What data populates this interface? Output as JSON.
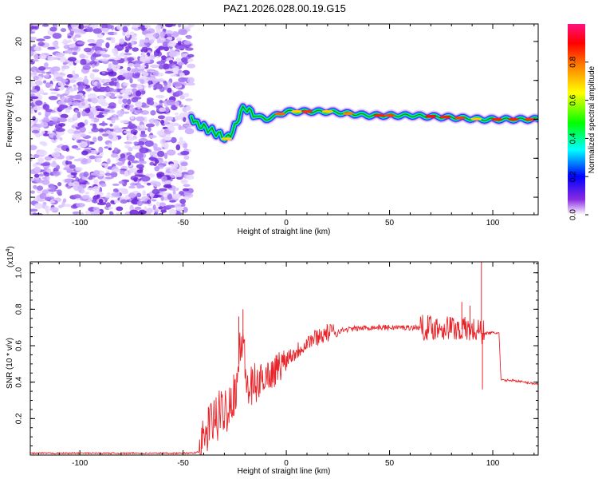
{
  "chart_data": [
    {
      "type": "heatmap",
      "title": "PAZ1.2026.028.00.19.G15",
      "xlabel": "Height of straight line (km)",
      "ylabel": "Frequency (Hz)",
      "xlim": [
        -124,
        122
      ],
      "ylim": [
        -24.5,
        24.5
      ],
      "xticks": [
        -100,
        -50,
        0,
        50,
        100
      ],
      "xtick_labels": [
        "-100",
        "-50",
        "0",
        "50",
        "100"
      ],
      "yticks": [
        -20,
        -10,
        0,
        10,
        20
      ],
      "ytick_labels": [
        "-20",
        "-10",
        "0",
        "10",
        "20"
      ],
      "colorbar": {
        "label": "Normalized spectral amplitude",
        "range": [
          0,
          1
        ],
        "ticks": [
          0.0,
          0.2,
          0.4,
          0.6,
          0.8
        ],
        "tick_labels": [
          "0.0",
          "0.2",
          "0.4",
          "0.6",
          "0.8"
        ],
        "colormap": [
          "#ffffff",
          "#8a2be2",
          "#0000ff",
          "#00ffff",
          "#00ff00",
          "#ffff00",
          "#ff8000",
          "#ff0000",
          "#ff00aa"
        ]
      },
      "signal_ridge": {
        "description_points_km_hz": [
          [
            -46,
            1
          ],
          [
            -44,
            -1
          ],
          [
            -40,
            -2
          ],
          [
            -36,
            -3
          ],
          [
            -32,
            -4
          ],
          [
            -29,
            -5
          ],
          [
            -26,
            -3
          ],
          [
            -24,
            -1
          ],
          [
            -22,
            2
          ],
          [
            -20,
            3
          ],
          [
            -15,
            1
          ],
          [
            -10,
            0
          ],
          [
            -5,
            1
          ],
          [
            0,
            2
          ],
          [
            10,
            2
          ],
          [
            20,
            2
          ],
          [
            40,
            1
          ],
          [
            60,
            1
          ],
          [
            80,
            0.5
          ],
          [
            95,
            0
          ],
          [
            122,
            0
          ]
        ]
      }
    },
    {
      "type": "line",
      "xlabel": "Height of straight line (km)",
      "ylabel": "SNR (10 * v/v)",
      "y_multiplier_label": "(x10",
      "y_multiplier_exp": "4",
      "y_multiplier_close": ")",
      "xlim": [
        -124,
        122
      ],
      "ylim": [
        0,
        1.06
      ],
      "xticks": [
        -100,
        -50,
        0,
        50,
        100
      ],
      "xtick_labels": [
        "-100",
        "-50",
        "0",
        "50",
        "100"
      ],
      "yticks": [
        0.2,
        0.4,
        0.6,
        0.8,
        1.0
      ],
      "ytick_labels": [
        "0.2",
        "0.4",
        "0.6",
        "0.8",
        "1.0"
      ],
      "series_color": "#e8252a",
      "series": [
        {
          "name": "SNR",
          "x": [
            -124,
            -100,
            -75,
            -50,
            -45,
            -42,
            -40,
            -38,
            -36,
            -34,
            -32,
            -30,
            -28,
            -26,
            -24,
            -22,
            -21,
            -20,
            -18,
            -16,
            -14,
            -12,
            -10,
            -8,
            -6,
            -4,
            -2,
            0,
            2,
            4,
            6,
            8,
            10,
            12,
            15,
            20,
            25,
            30,
            40,
            50,
            60,
            70,
            75,
            80,
            85,
            88,
            92,
            94,
            95,
            96,
            100,
            103,
            104,
            110,
            115,
            122
          ],
          "y": [
            0.01,
            0.01,
            0.01,
            0.01,
            0.01,
            0.02,
            0.06,
            0.15,
            0.18,
            0.2,
            0.22,
            0.25,
            0.28,
            0.32,
            0.4,
            0.6,
            0.68,
            0.45,
            0.35,
            0.36,
            0.38,
            0.42,
            0.44,
            0.44,
            0.46,
            0.48,
            0.5,
            0.53,
            0.55,
            0.56,
            0.58,
            0.6,
            0.62,
            0.63,
            0.65,
            0.67,
            0.68,
            0.69,
            0.7,
            0.7,
            0.7,
            0.7,
            0.7,
            0.7,
            0.69,
            0.69,
            0.68,
            0.68,
            0.67,
            0.67,
            0.67,
            0.67,
            0.41,
            0.41,
            0.4,
            0.39
          ]
        }
      ],
      "spikes": [
        {
          "x": -21,
          "y": 0.8
        },
        {
          "x": -23,
          "y": 0.76
        },
        {
          "x": 85,
          "y": 0.84
        },
        {
          "x": 89,
          "y": 0.82
        },
        {
          "x": 94.5,
          "y": 1.06
        },
        {
          "x": 95,
          "y": 0.36
        }
      ]
    }
  ]
}
